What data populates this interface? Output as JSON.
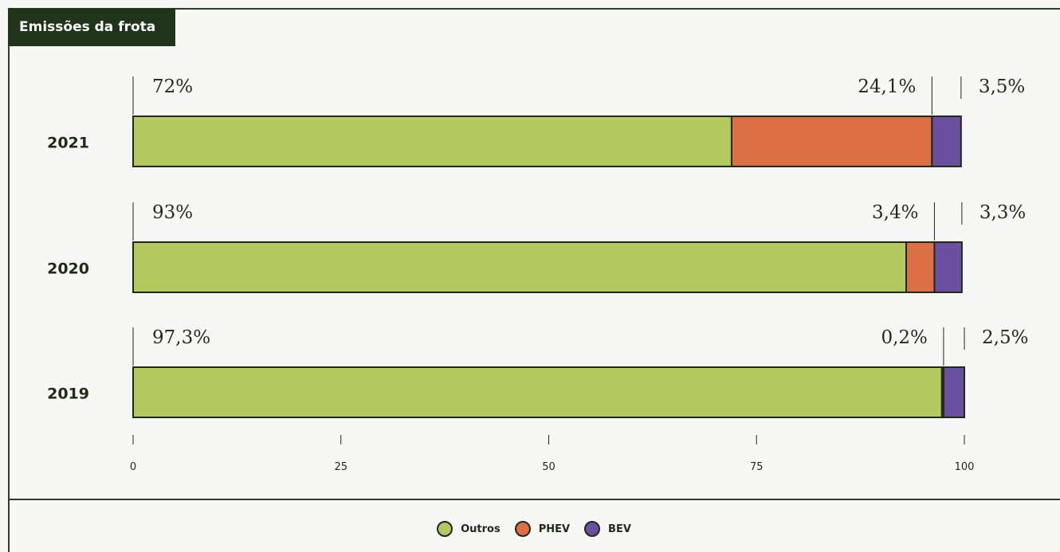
{
  "title": "Emissões da frota",
  "chart_data": {
    "type": "bar",
    "orientation": "horizontal",
    "stacked": true,
    "categories": [
      "2021",
      "2020",
      "2019"
    ],
    "series": [
      {
        "name": "Outros",
        "color": "#b3c95e",
        "values": [
          72,
          93,
          97.3
        ],
        "labels": [
          "72%",
          "93%",
          "97,3%"
        ]
      },
      {
        "name": "PHEV",
        "color": "#dd6f45",
        "values": [
          24.1,
          3.4,
          0.2
        ],
        "labels": [
          "24,1%",
          "3,4%",
          "0,2%"
        ]
      },
      {
        "name": "BEV",
        "color": "#6b4fa0",
        "values": [
          3.5,
          3.3,
          2.5
        ],
        "labels": [
          "3,5%",
          "3,3%",
          "2,5%"
        ]
      }
    ],
    "x_ticks": [
      "0",
      "25",
      "50",
      "75",
      "100"
    ],
    "xlim": [
      0,
      100
    ],
    "legend_position": "bottom"
  }
}
